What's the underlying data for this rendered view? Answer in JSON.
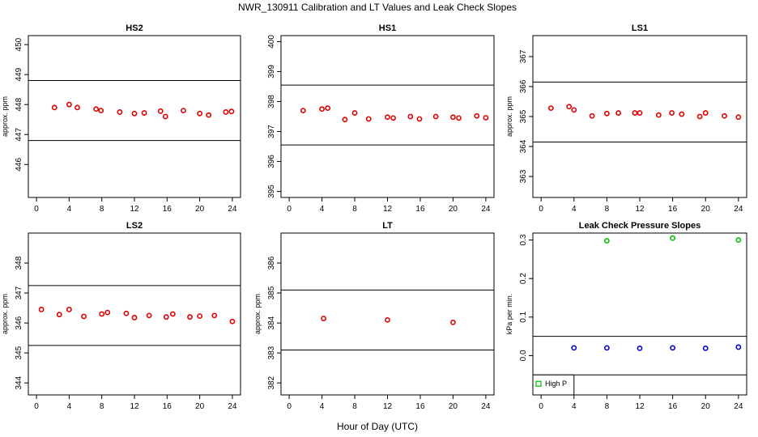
{
  "figure": {
    "title": "NWR_130911  Calibration and LT Values and Leak Check Slopes",
    "xlabel": "Hour of Day (UTC)"
  },
  "chart_data": [
    {
      "id": "hs2",
      "type": "scatter",
      "title": "HS2",
      "ylabel": "approx. ppm",
      "xlim": [
        -1,
        25
      ],
      "ylim": [
        444.9,
        450.3
      ],
      "xticks": [
        0,
        4,
        8,
        12,
        16,
        20,
        24
      ],
      "yticks": [
        446,
        447,
        448,
        449,
        450
      ],
      "hlines": [
        448.8,
        446.8
      ],
      "grid": false,
      "color": "#e00000",
      "points": [
        [
          2.2,
          447.9
        ],
        [
          4.0,
          448.0
        ],
        [
          5.0,
          447.9
        ],
        [
          7.3,
          447.85
        ],
        [
          7.9,
          447.8
        ],
        [
          10.2,
          447.75
        ],
        [
          12.0,
          447.7
        ],
        [
          13.2,
          447.72
        ],
        [
          15.2,
          447.78
        ],
        [
          15.8,
          447.6
        ],
        [
          18.0,
          447.8
        ],
        [
          20.0,
          447.7
        ],
        [
          21.1,
          447.65
        ],
        [
          23.2,
          447.75
        ],
        [
          23.9,
          447.77
        ]
      ]
    },
    {
      "id": "hs1",
      "type": "scatter",
      "title": "HS1",
      "ylabel": "",
      "xlim": [
        -1,
        25
      ],
      "ylim": [
        394.8,
        400.2
      ],
      "xticks": [
        0,
        4,
        8,
        12,
        16,
        20,
        24
      ],
      "yticks": [
        395,
        396,
        397,
        398,
        399,
        400
      ],
      "hlines": [
        398.55,
        396.55
      ],
      "grid": false,
      "color": "#e00000",
      "points": [
        [
          1.7,
          397.7
        ],
        [
          4.0,
          397.75
        ],
        [
          4.7,
          397.78
        ],
        [
          6.8,
          397.4
        ],
        [
          8.0,
          397.62
        ],
        [
          9.7,
          397.42
        ],
        [
          12.0,
          397.48
        ],
        [
          12.7,
          397.45
        ],
        [
          14.8,
          397.5
        ],
        [
          15.9,
          397.42
        ],
        [
          17.9,
          397.5
        ],
        [
          20.0,
          397.48
        ],
        [
          20.7,
          397.45
        ],
        [
          22.9,
          397.52
        ],
        [
          24.0,
          397.46
        ]
      ]
    },
    {
      "id": "ls1",
      "type": "scatter",
      "title": "LS1",
      "ylabel": "approx. ppm",
      "xlim": [
        -1,
        25
      ],
      "ylim": [
        362.3,
        367.7
      ],
      "xticks": [
        0,
        4,
        8,
        12,
        16,
        20,
        24
      ],
      "yticks": [
        363,
        364,
        365,
        366,
        367
      ],
      "hlines": [
        366.15,
        364.15
      ],
      "grid": false,
      "color": "#e00000",
      "points": [
        [
          1.2,
          365.28
        ],
        [
          3.4,
          365.33
        ],
        [
          4.0,
          365.22
        ],
        [
          6.2,
          365.02
        ],
        [
          8.0,
          365.1
        ],
        [
          9.4,
          365.12
        ],
        [
          11.4,
          365.12
        ],
        [
          12.0,
          365.12
        ],
        [
          14.3,
          365.05
        ],
        [
          15.9,
          365.12
        ],
        [
          17.1,
          365.08
        ],
        [
          19.3,
          365.0
        ],
        [
          20.0,
          365.12
        ],
        [
          22.3,
          365.02
        ],
        [
          24.0,
          364.98
        ]
      ]
    },
    {
      "id": "ls2",
      "type": "scatter",
      "title": "LS2",
      "ylabel": "approx. ppm",
      "xlim": [
        -1,
        25
      ],
      "ylim": [
        343.6,
        349.0
      ],
      "xticks": [
        0,
        4,
        8,
        12,
        16,
        20,
        24
      ],
      "yticks": [
        344,
        345,
        346,
        347,
        348
      ],
      "hlines": [
        347.25,
        345.25
      ],
      "grid": false,
      "color": "#e00000",
      "points": [
        [
          0.6,
          346.45
        ],
        [
          2.8,
          346.28
        ],
        [
          4.0,
          346.45
        ],
        [
          5.8,
          346.22
        ],
        [
          8.0,
          346.3
        ],
        [
          8.7,
          346.35
        ],
        [
          11.0,
          346.32
        ],
        [
          12.0,
          346.18
        ],
        [
          13.8,
          346.25
        ],
        [
          15.9,
          346.2
        ],
        [
          16.7,
          346.3
        ],
        [
          18.8,
          346.2
        ],
        [
          20.0,
          346.23
        ],
        [
          21.8,
          346.25
        ],
        [
          24.0,
          346.05
        ]
      ]
    },
    {
      "id": "lt",
      "type": "scatter",
      "title": "LT",
      "ylabel": "approx. ppm",
      "xlim": [
        -1,
        25
      ],
      "ylim": [
        381.6,
        387.0
      ],
      "xticks": [
        0,
        4,
        8,
        12,
        16,
        20,
        24
      ],
      "yticks": [
        382,
        383,
        384,
        385,
        386
      ],
      "hlines": [
        385.1,
        383.1
      ],
      "grid": false,
      "color": "#e00000",
      "points": [
        [
          4.2,
          384.15
        ],
        [
          12.0,
          384.1
        ],
        [
          20.0,
          384.02
        ]
      ]
    },
    {
      "id": "leak",
      "type": "scatter",
      "title": "Leak Check Pressure Slopes",
      "ylabel": "kPa per min.",
      "xlim": [
        -1,
        25
      ],
      "ylim": [
        -0.102,
        0.318
      ],
      "xticks": [
        0,
        4,
        8,
        12,
        16,
        20,
        24
      ],
      "yticks": [
        0.0,
        0.1,
        0.2,
        0.3
      ],
      "hlines": [
        0.05,
        -0.05
      ],
      "grid": false,
      "legend": {
        "position": "bottom-left",
        "entries": [
          {
            "label": "High P",
            "color": "#00c000"
          }
        ]
      },
      "series": [
        {
          "name": "High P",
          "color": "#00c000",
          "points": [
            [
              8,
              0.298
            ],
            [
              16,
              0.305
            ],
            [
              24,
              0.3
            ]
          ]
        },
        {
          "color": "#0000cc",
          "points": [
            [
              4,
              0.02
            ],
            [
              8,
              0.02
            ],
            [
              12,
              0.019
            ],
            [
              16,
              0.02
            ],
            [
              20,
              0.019
            ],
            [
              24,
              0.022
            ]
          ]
        }
      ]
    }
  ]
}
